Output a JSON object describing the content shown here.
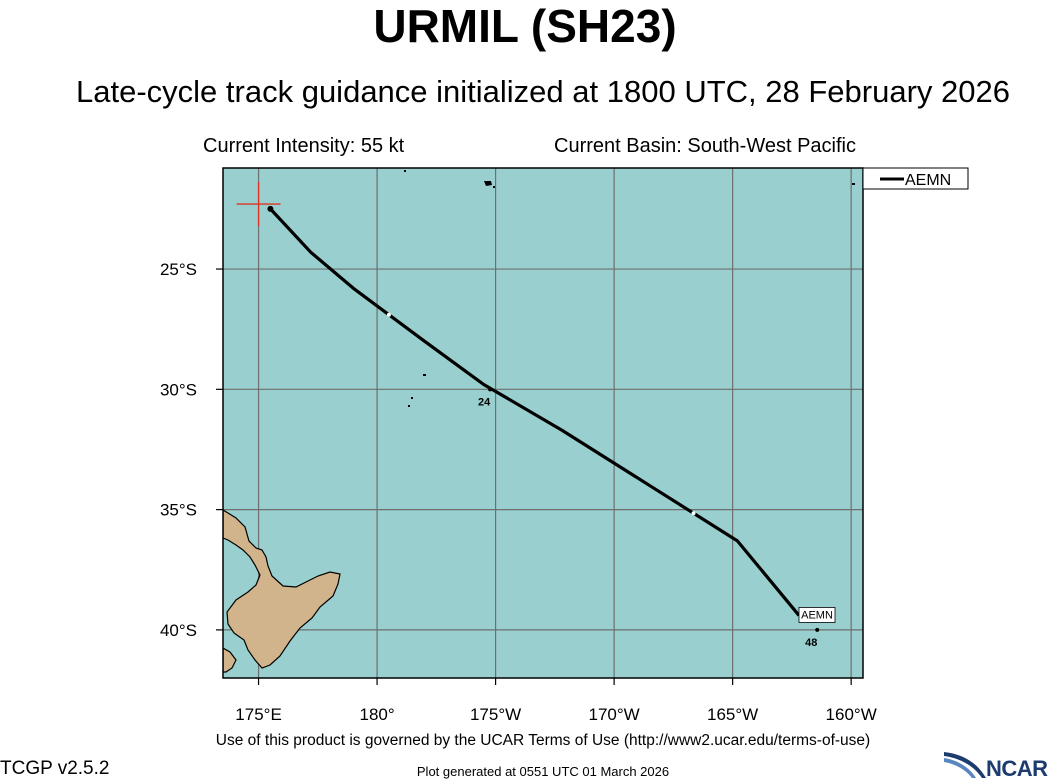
{
  "header": {
    "title": "URMIL (SH23)",
    "subtitle": "Late-cycle track guidance initialized at 1800 UTC, 28 February 2026",
    "current_intensity": "Current Intensity: 55 kt",
    "current_basin": "Current Basin: South-West Pacific"
  },
  "map": {
    "ocean_color": "#99cfcf",
    "land_color": "#d2b48c",
    "grid_color": "#6f6f6f",
    "track_color": "#000000",
    "current_position_marker_color": "#dd3322",
    "lon_ticks": [
      "175°E",
      "180°",
      "175°W",
      "170°W",
      "165°W",
      "160°W"
    ],
    "lat_ticks": [
      "25°S",
      "30°S",
      "35°S",
      "40°S"
    ],
    "lon_tick_values": [
      175,
      180,
      185,
      190,
      195,
      200
    ],
    "lat_tick_values": [
      -25,
      -30,
      -35,
      -40
    ],
    "lon_range_east": [
      173.5,
      200.5
    ],
    "lat_range": [
      -20.8,
      -42.0
    ]
  },
  "chart_data": {
    "type": "line",
    "series": [
      {
        "name": "AEMN",
        "lon_east": [
          175.5,
          177.2,
          179.0,
          182.0,
          184.5,
          187.8,
          191.5,
          195.2,
          197.8
        ],
        "lat": [
          -22.5,
          -24.3,
          -25.8,
          -28.0,
          -29.8,
          -31.7,
          -34.0,
          -36.3,
          -39.4
        ],
        "end_label": "AEMN"
      }
    ],
    "forecast_hour_labels": [
      {
        "hour": "24",
        "lon_east": 184.6,
        "lat": -30.0
      },
      {
        "hour": "48",
        "lon_east": 198.4,
        "lat": -40.0
      }
    ],
    "current_position": {
      "lon_east": 175.0,
      "lat": -22.3
    },
    "legend": {
      "entries": [
        "AEMN"
      ],
      "position": "top-right outside plot"
    }
  },
  "footer": {
    "terms": "Use of this product is governed by the UCAR Terms of Use (http://www2.ucar.edu/terms-of-use)",
    "version": "TCGP v2.5.2",
    "generated": "Plot generated at 0551 UTC   01 March 2026",
    "logo_text": "NCAR"
  }
}
